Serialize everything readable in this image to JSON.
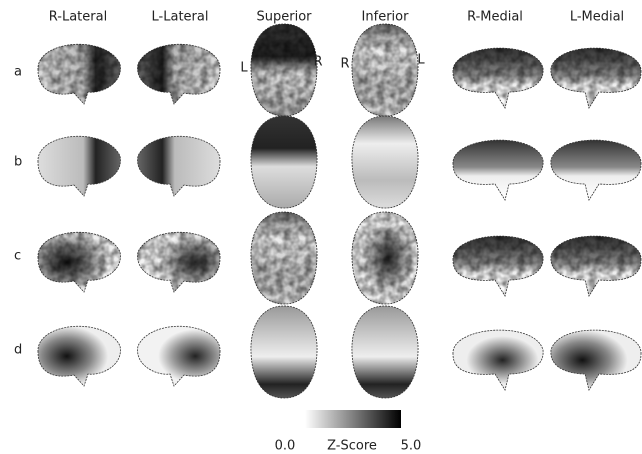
{
  "columns": [
    "R-Lateral",
    "L-Lateral",
    "Superior",
    "Inferior",
    "R-Medial",
    "L-Medial"
  ],
  "rows": [
    "a",
    "b",
    "c",
    "d"
  ],
  "orientation": {
    "superior_left": "L",
    "superior_right": "R",
    "inferior_left": "R",
    "inferior_right": "L"
  },
  "colorbar": {
    "min_label": "0.0",
    "label": "Z-Score",
    "max_label": "5.0"
  }
}
